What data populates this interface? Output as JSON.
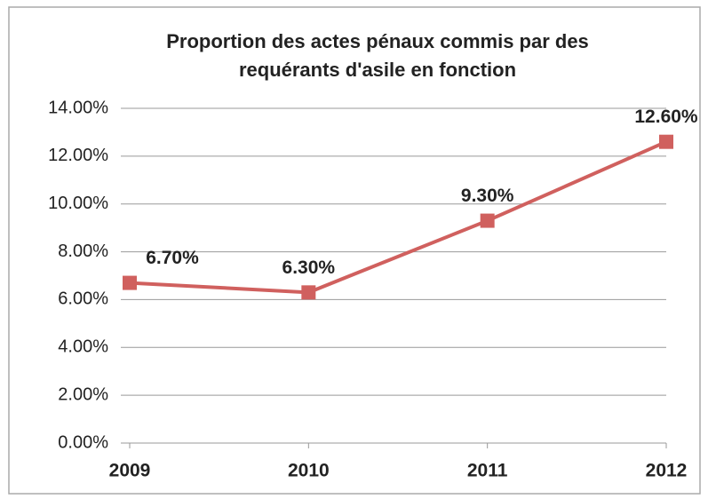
{
  "chart_data": {
    "type": "line",
    "title": [
      "Proportion des actes pénaux commis par des",
      "requérants d'asile en fonction"
    ],
    "categories": [
      "2009",
      "2010",
      "2011",
      "2012"
    ],
    "series": [
      {
        "color": "#d0605e",
        "values": [
          6.7,
          6.3,
          9.3,
          12.6
        ],
        "value_labels": [
          "6.70%",
          "6.30%",
          "9.30%",
          "12.60%"
        ]
      }
    ],
    "ylim": [
      0,
      14
    ],
    "yticks": [
      {
        "value": 0,
        "label": "0.00%"
      },
      {
        "value": 2,
        "label": "2.00%"
      },
      {
        "value": 4,
        "label": "4.00%"
      },
      {
        "value": 6,
        "label": "6.00%"
      },
      {
        "value": 8,
        "label": "8.00%"
      },
      {
        "value": 10,
        "label": "10.00%"
      },
      {
        "value": 12,
        "label": "12.00%"
      },
      {
        "value": 14,
        "label": "14.00%"
      }
    ],
    "grid": true
  }
}
